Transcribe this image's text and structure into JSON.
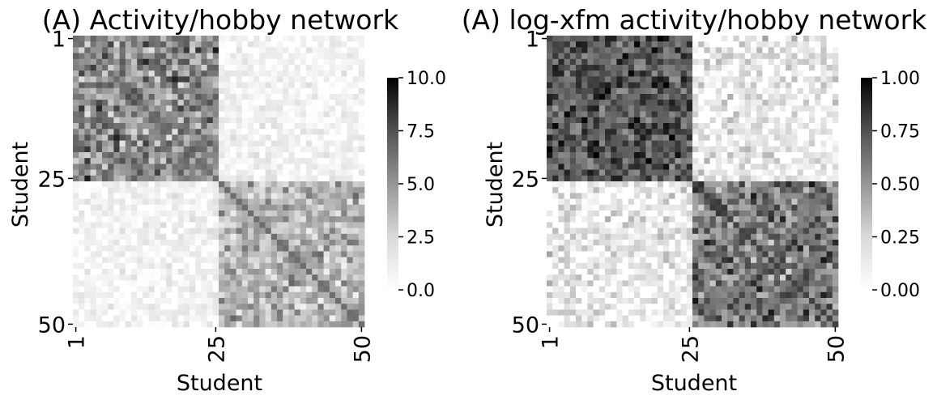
{
  "chart_data": [
    {
      "type": "heatmap",
      "title": "(A) Activity/hobby network",
      "xlabel": "Student",
      "ylabel": "Student",
      "n": 50,
      "x_ticks": [
        "1",
        "25",
        "50"
      ],
      "y_ticks": [
        "1",
        "25",
        "50"
      ],
      "tick_indices": [
        1,
        25,
        50
      ],
      "colormap": "Greys",
      "vmin": 0,
      "vmax": 10,
      "colorbar_ticks": [
        "0.0",
        "2.5",
        "5.0",
        "7.5",
        "10.0"
      ],
      "colorbar_values": [
        0,
        2.5,
        5,
        7.5,
        10
      ],
      "blocks": [
        {
          "rows": [
            1,
            25
          ],
          "cols": [
            1,
            25
          ],
          "mean": 5.4,
          "spread": 2.6
        },
        {
          "rows": [
            26,
            50
          ],
          "cols": [
            26,
            50
          ],
          "mean": 3.8,
          "spread": 2.2
        },
        {
          "rows": [
            1,
            25
          ],
          "cols": [
            26,
            50
          ],
          "mean": 1.1,
          "spread": 1.0
        },
        {
          "rows": [
            26,
            50
          ],
          "cols": [
            1,
            25
          ],
          "mean": 1.0,
          "spread": 1.0
        }
      ],
      "diagonal_value": 6.5,
      "seed": 7
    },
    {
      "type": "heatmap",
      "title": "(A) log-xfm activity/hobby network",
      "xlabel": "Student",
      "ylabel": "Student",
      "n": 50,
      "x_ticks": [
        "1",
        "25",
        "50"
      ],
      "y_ticks": [
        "1",
        "25",
        "50"
      ],
      "tick_indices": [
        1,
        25,
        50
      ],
      "colormap": "Greys",
      "vmin": 0,
      "vmax": 1,
      "colorbar_ticks": [
        "0.00",
        "0.25",
        "0.50",
        "0.75",
        "1.00"
      ],
      "colorbar_values": [
        0,
        0.25,
        0.5,
        0.75,
        1
      ],
      "blocks": [
        {
          "rows": [
            1,
            25
          ],
          "cols": [
            1,
            25
          ],
          "mean": 0.72,
          "spread": 0.22
        },
        {
          "rows": [
            26,
            50
          ],
          "cols": [
            26,
            50
          ],
          "mean": 0.6,
          "spread": 0.25
        },
        {
          "rows": [
            1,
            25
          ],
          "cols": [
            26,
            50
          ],
          "mean": 0.18,
          "spread": 0.2
        },
        {
          "rows": [
            26,
            50
          ],
          "cols": [
            1,
            25
          ],
          "mean": 0.16,
          "spread": 0.2
        }
      ],
      "diagonal_value": 0.8,
      "seed": 13
    }
  ]
}
